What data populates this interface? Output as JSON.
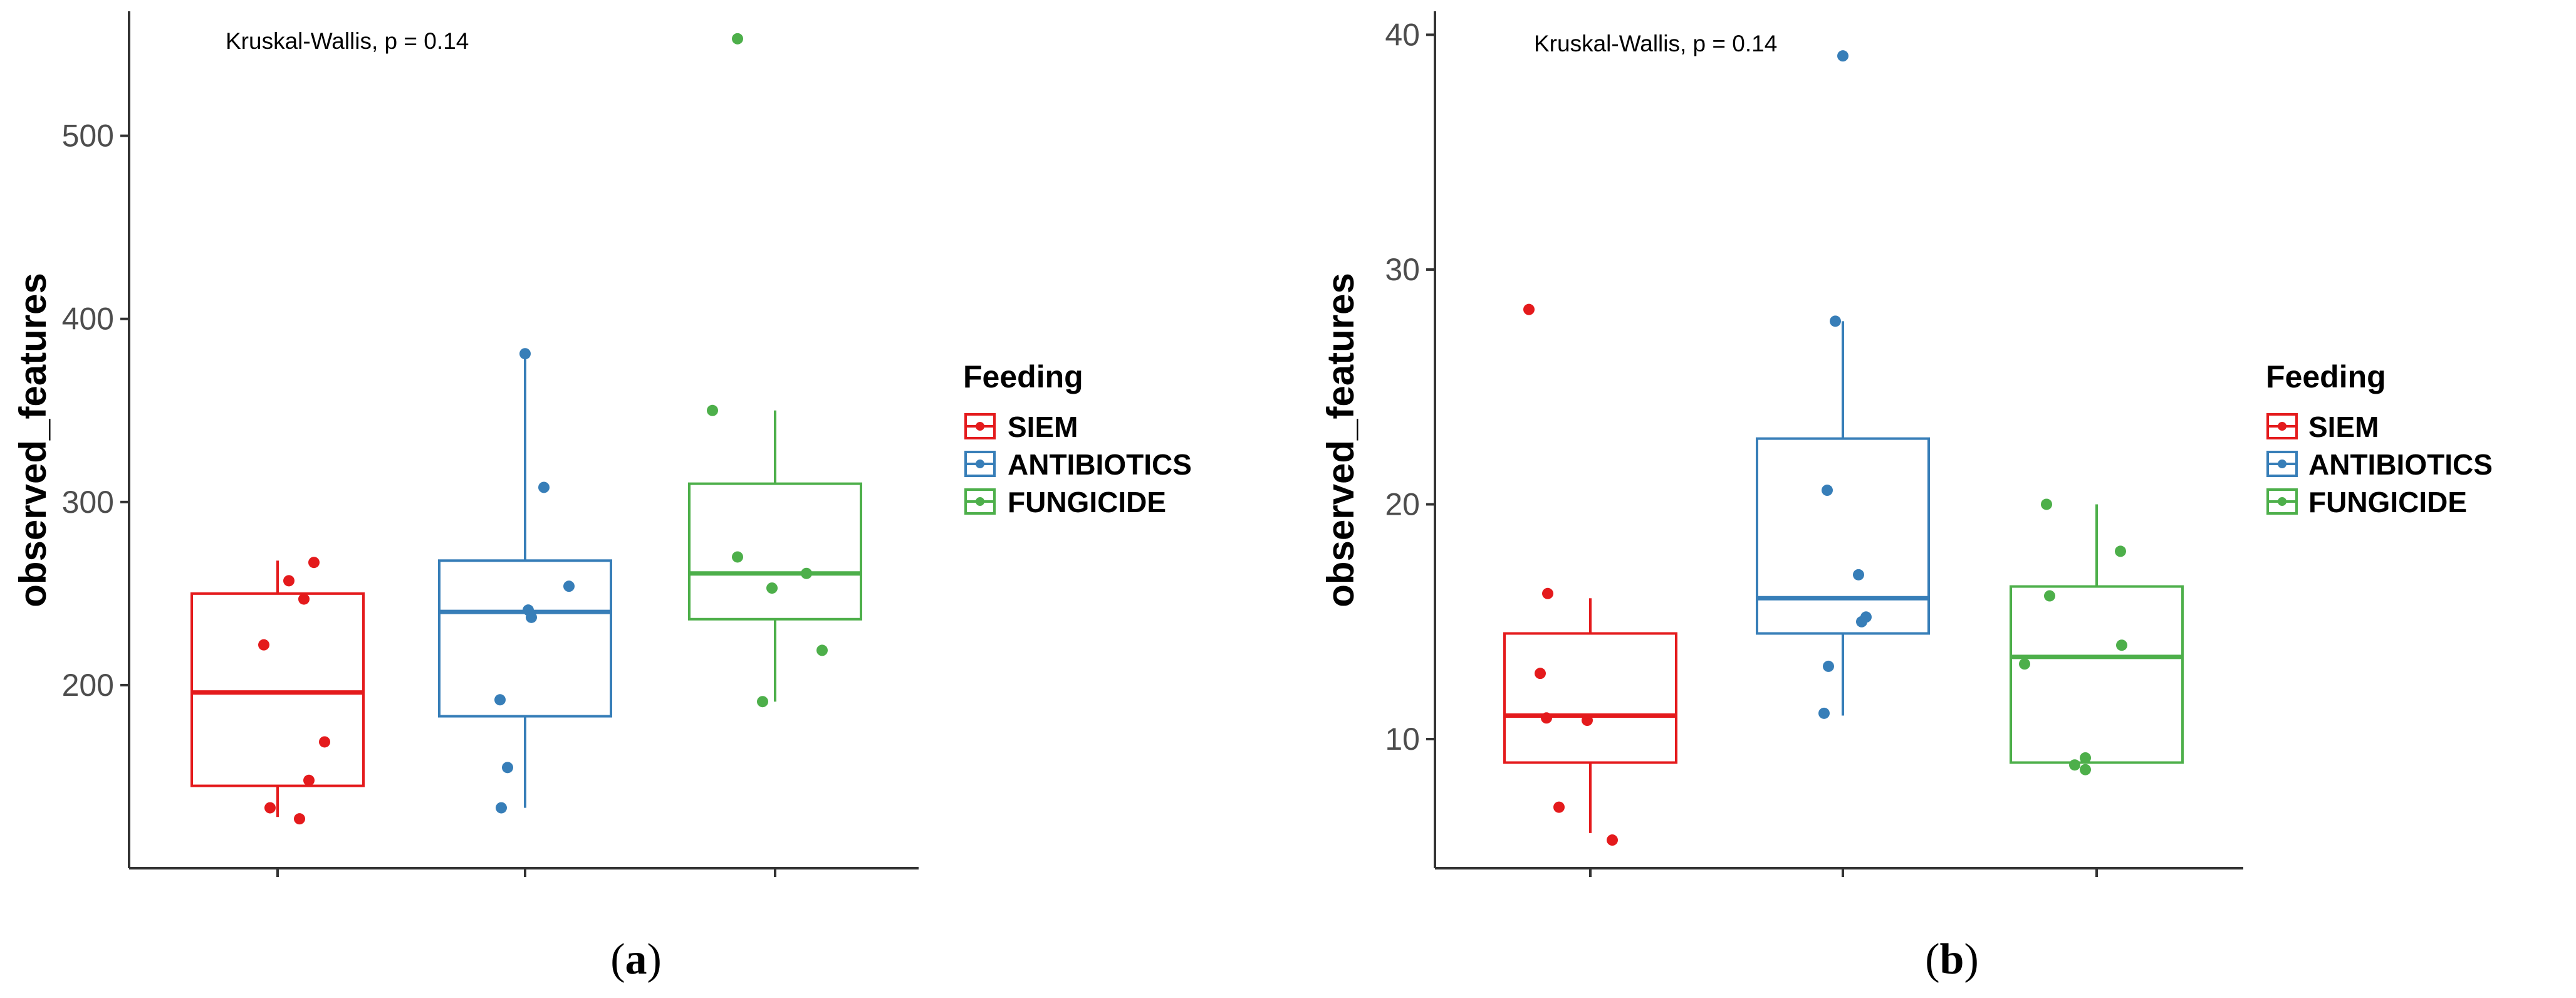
{
  "chart_data": [
    {
      "type": "box",
      "panel_label": "a",
      "annotation": "Kruskal-Wallis, p = 0.14",
      "xlabel": "",
      "ylabel": "observed_features",
      "ylim": [
        100,
        568
      ],
      "yticks": [
        200,
        300,
        400,
        500
      ],
      "legend": {
        "title": "Feeding",
        "position": "right"
      },
      "groups": [
        {
          "name": "SIEM",
          "color": "#e41a1c",
          "min": 128,
          "q1": 145,
          "median": 196,
          "q3": 250,
          "max": 268,
          "points": [
            127,
            133,
            148,
            169,
            222,
            247,
            257,
            267
          ]
        },
        {
          "name": "ANTIBIOTICS",
          "color": "#377eb8",
          "min": 133,
          "q1": 183,
          "median": 240,
          "q3": 268,
          "max": 381,
          "points": [
            133,
            155,
            192,
            237,
            241,
            254,
            308,
            381
          ]
        },
        {
          "name": "FUNGICIDE",
          "color": "#4daf4a",
          "min": 191,
          "q1": 236,
          "median": 261,
          "q3": 310,
          "max": 350,
          "points": [
            191,
            219,
            253,
            261,
            270,
            350,
            553
          ]
        }
      ]
    },
    {
      "type": "box",
      "panel_label": "b",
      "annotation": "Kruskal-Wallis, p = 0.14",
      "xlabel": "",
      "ylabel": "observed_features",
      "ylim": [
        4.5,
        41
      ],
      "yticks": [
        10,
        20,
        30,
        40
      ],
      "legend": {
        "title": "Feeding",
        "position": "right"
      },
      "groups": [
        {
          "name": "SIEM",
          "color": "#e41a1c",
          "min": 6,
          "q1": 9,
          "median": 11,
          "q3": 14.5,
          "max": 16,
          "points": [
            5.7,
            7.1,
            10.8,
            10.9,
            12.8,
            16.2,
            28.3
          ]
        },
        {
          "name": "ANTIBIOTICS",
          "color": "#377eb8",
          "min": 11,
          "q1": 14.5,
          "median": 16,
          "q3": 22.8,
          "max": 27.8,
          "points": [
            11.1,
            13.1,
            15.0,
            15.2,
            17.0,
            20.6,
            27.8,
            39.1
          ]
        },
        {
          "name": "FUNGICIDE",
          "color": "#4daf4a",
          "min": 9,
          "q1": 9,
          "median": 13.5,
          "q3": 16.5,
          "max": 20,
          "points": [
            8.7,
            8.9,
            9.2,
            13.2,
            14.0,
            16.1,
            18.0,
            20.0
          ]
        }
      ]
    }
  ]
}
